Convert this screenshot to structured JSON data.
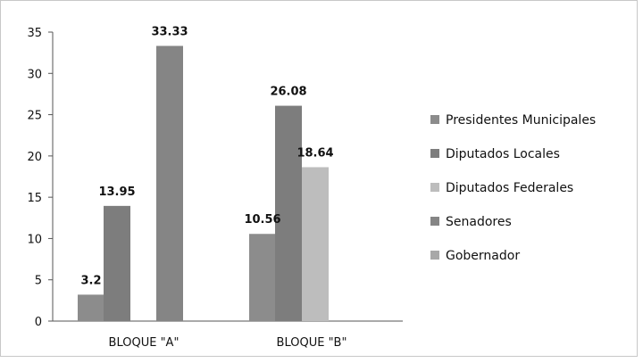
{
  "chart_data": {
    "type": "bar",
    "title": "",
    "xlabel": "",
    "ylabel": "",
    "ylim": [
      0,
      35
    ],
    "yticks": [
      0,
      5,
      10,
      15,
      20,
      25,
      30,
      35
    ],
    "grid": false,
    "legend_position": "right",
    "categories": [
      "BLOQUE \"A\"",
      "BLOQUE \"B\""
    ],
    "series": [
      {
        "name": "Presidentes Municipales",
        "color": "#8c8c8c",
        "values": [
          3.2,
          10.56
        ],
        "labels": [
          "3.2",
          "10.56"
        ]
      },
      {
        "name": "Diputados Locales",
        "color": "#7d7d7d",
        "values": [
          13.95,
          26.08
        ],
        "labels": [
          "13.95",
          "26.08"
        ]
      },
      {
        "name": "Diputados Federales",
        "color": "#bdbdbd",
        "values": [
          null,
          18.64
        ],
        "labels": [
          "",
          "18.64"
        ]
      },
      {
        "name": "Senadores",
        "color": "#858585",
        "values": [
          33.33,
          null
        ],
        "labels": [
          "33.33",
          ""
        ]
      },
      {
        "name": "Gobernador",
        "color": "#a8a8a8",
        "values": [
          null,
          null
        ],
        "labels": [
          "",
          ""
        ]
      }
    ]
  }
}
